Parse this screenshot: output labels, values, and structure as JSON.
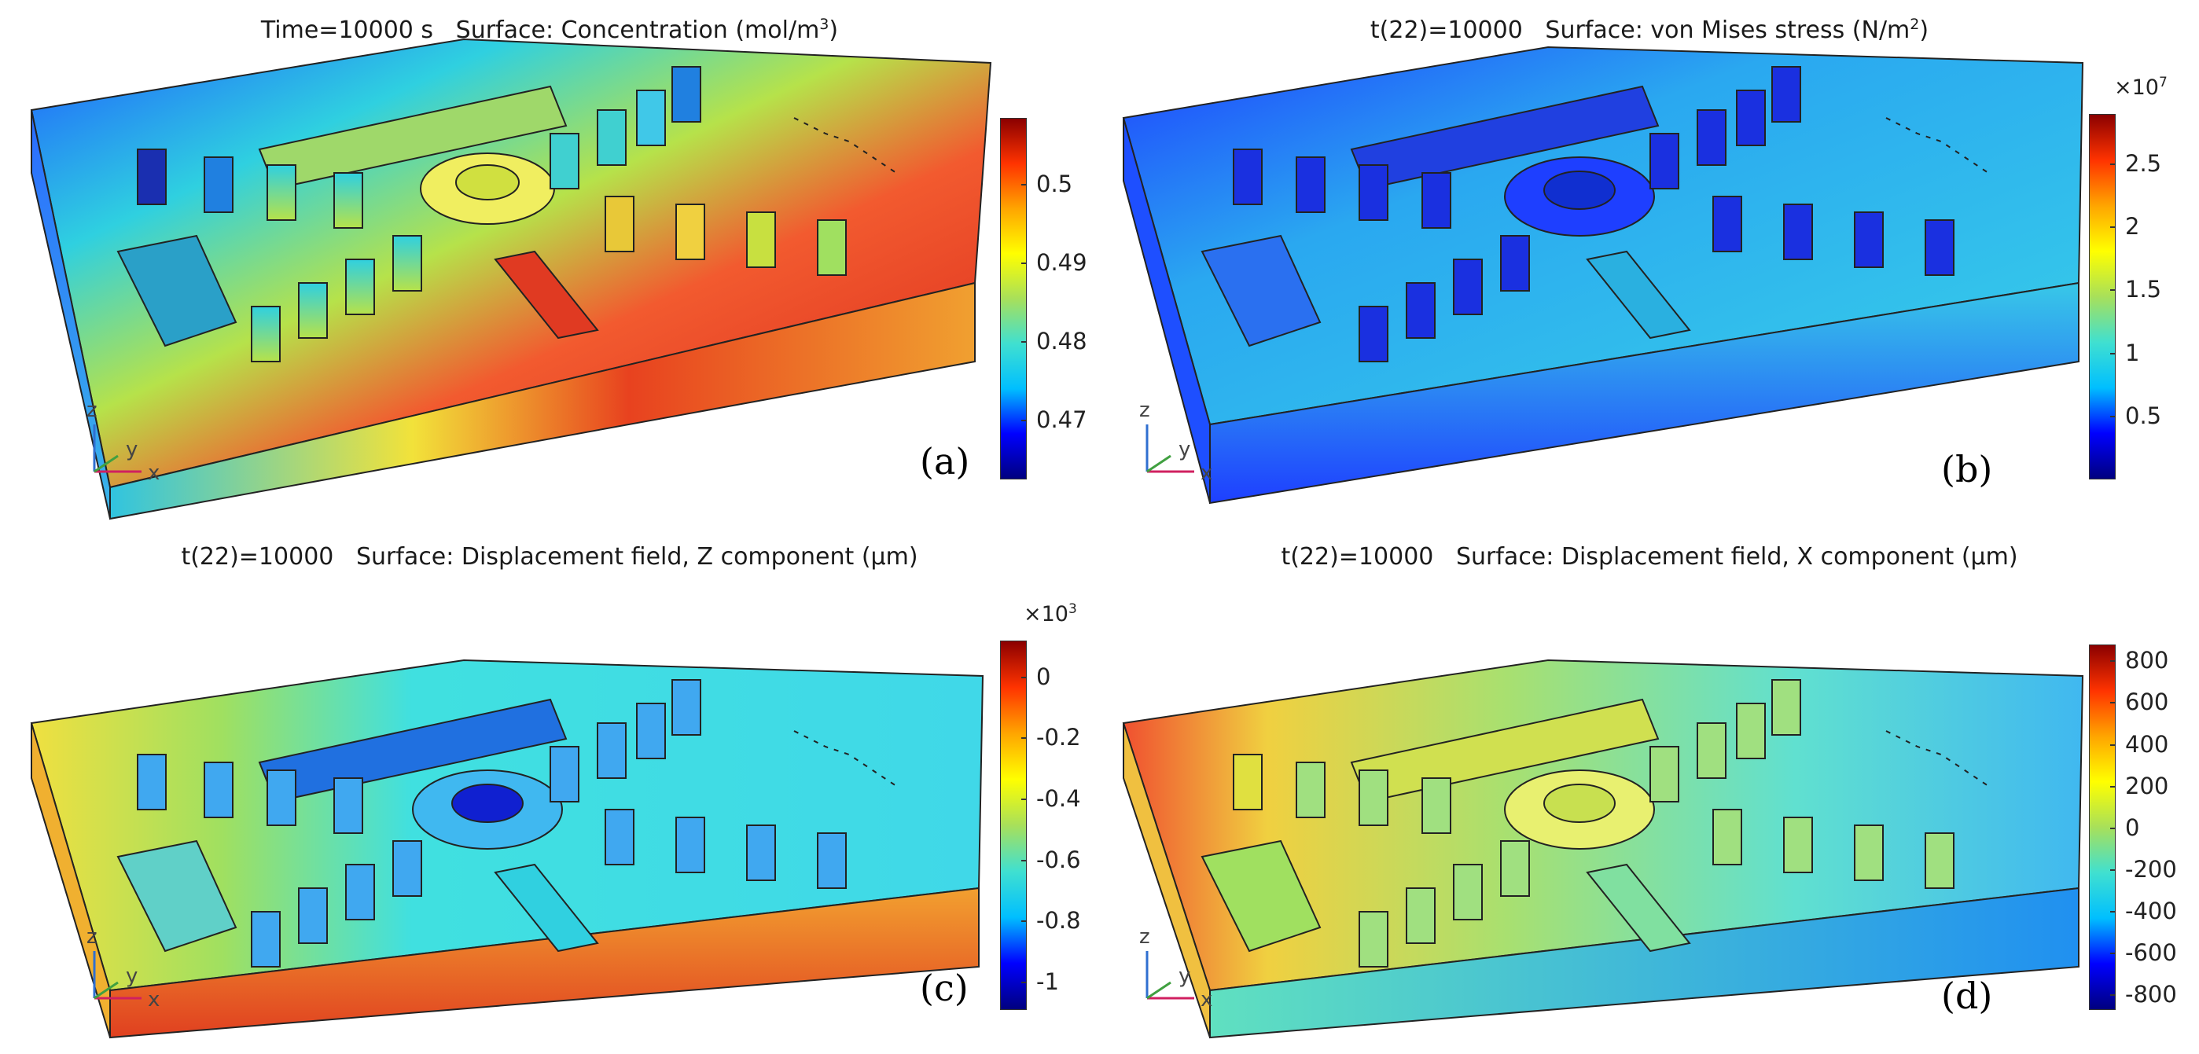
{
  "figure": {
    "panels": [
      {
        "id": "a",
        "label": "(a)",
        "title": {
          "prefix": "Time=10000 s   Surface: Concentration (mol/m",
          "sup": "3",
          "suffix": ")"
        },
        "colorbar": {
          "multiplier": null,
          "multiplier_exp": null,
          "ticks": [
            "0.5",
            "0.49",
            "0.48",
            "0.47"
          ],
          "tick_values": [
            0.5,
            0.49,
            0.48,
            0.47
          ],
          "min": 0.4625,
          "max": 0.5085
        }
      },
      {
        "id": "b",
        "label": "(b)",
        "title": {
          "prefix": "t(22)=10000   Surface: von Mises stress (N/m",
          "sup": "2",
          "suffix": ")"
        },
        "colorbar": {
          "multiplier": "×10",
          "multiplier_exp": "7",
          "ticks": [
            "2.5",
            "2",
            "1.5",
            "1",
            "0.5"
          ],
          "tick_values": [
            2.5,
            2,
            1.5,
            1,
            0.5
          ],
          "min": 0.0,
          "max": 2.9
        }
      },
      {
        "id": "c",
        "label": "(c)",
        "title": {
          "prefix": "t(22)=10000   Surface: Displacement field, Z component (µm)",
          "sup": "",
          "suffix": ""
        },
        "colorbar": {
          "multiplier": "×10",
          "multiplier_exp": "3",
          "ticks": [
            "0",
            "-0.2",
            "-0.4",
            "-0.6",
            "-0.8",
            "-1"
          ],
          "tick_values": [
            0,
            -0.2,
            -0.4,
            -0.6,
            -0.8,
            -1
          ],
          "min": -1.09,
          "max": 0.12
        }
      },
      {
        "id": "d",
        "label": "(d)",
        "title": {
          "prefix": "t(22)=10000   Surface: Displacement field, X component (µm)",
          "sup": "",
          "suffix": ""
        },
        "colorbar": {
          "multiplier": null,
          "multiplier_exp": null,
          "ticks": [
            "800",
            "600",
            "400",
            "200",
            "0",
            "-200",
            "-400",
            "-600",
            "-800"
          ],
          "tick_values": [
            800,
            600,
            400,
            200,
            0,
            -200,
            -400,
            -600,
            -800
          ],
          "min": -870,
          "max": 880
        }
      }
    ],
    "axis_triad": {
      "z": "z",
      "y": "y",
      "x": "x"
    },
    "colormap": [
      "#00007f",
      "#0000ff",
      "#00bfff",
      "#40e0d0",
      "#a8e05a",
      "#ffff00",
      "#ffa500",
      "#ff3300",
      "#8b0000"
    ]
  }
}
